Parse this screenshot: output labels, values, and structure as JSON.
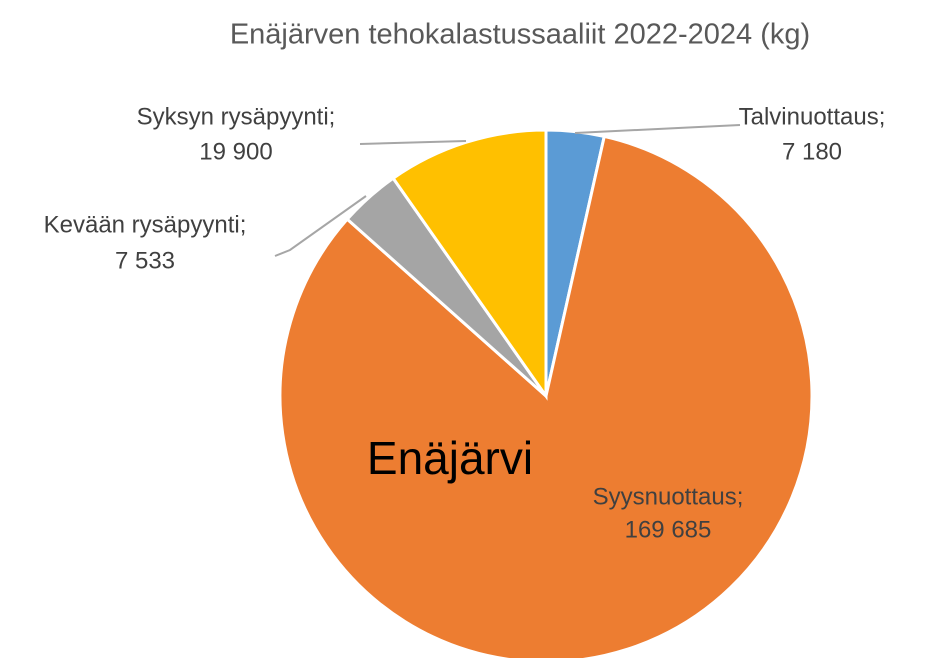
{
  "chart_data": {
    "type": "pie",
    "title": "Enäjärven tehokalastussaaliit 2022-2024 (kg)",
    "annotation": "Enäjärvi",
    "categories": [
      "Talvinuottaus;",
      "Syysnuottaus;",
      "Kevään rysäpyynti;",
      "Syksyn rysäpyynti;"
    ],
    "values": [
      7180,
      169685,
      7533,
      19900
    ],
    "value_labels": [
      "7 180",
      "169 685",
      "7 533",
      "19 900"
    ],
    "colors": [
      "#5b9bd5",
      "#ed7d31",
      "#a5a5a5",
      "#ffc000"
    ]
  }
}
